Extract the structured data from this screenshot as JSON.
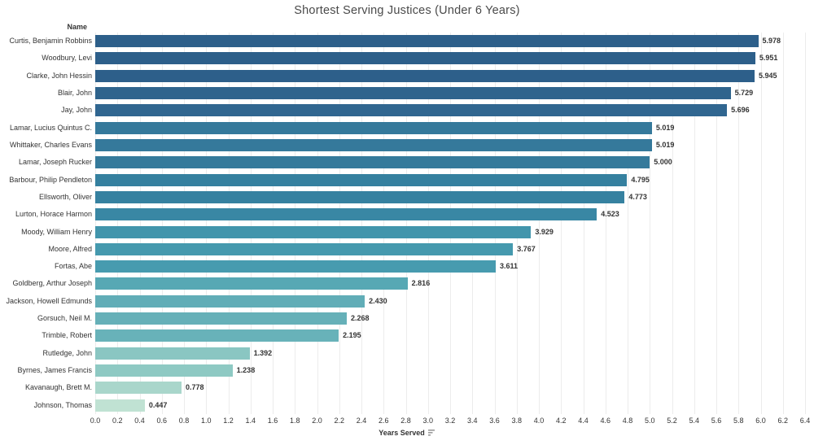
{
  "title": "Shortest Serving Justices (Under 6 Years)",
  "row_header_label": "Name",
  "x_axis": {
    "title": "Years Served",
    "sort_icon": "sort-descending-icon",
    "tick_labels": [
      "0.0",
      "0.2",
      "0.4",
      "0.6",
      "0.8",
      "1.0",
      "1.2",
      "1.4",
      "1.6",
      "1.8",
      "2.0",
      "2.2",
      "2.4",
      "2.6",
      "2.8",
      "3.0",
      "3.2",
      "3.4",
      "3.6",
      "3.8",
      "4.0",
      "4.2",
      "4.4",
      "4.6",
      "4.8",
      "5.0",
      "5.2",
      "5.4",
      "5.6",
      "5.8",
      "6.0",
      "6.2",
      "6.4"
    ]
  },
  "colors": {
    "title_text": "#4a4a4a",
    "label_text": "#333333",
    "gridline": "#ececec"
  },
  "chart_data": {
    "type": "bar",
    "orientation": "horizontal",
    "title": "Shortest Serving Justices (Under 6 Years)",
    "xlabel": "Years Served",
    "ylabel": "Name",
    "xlim": [
      0,
      6.4
    ],
    "x_tick_step": 0.2,
    "grid": true,
    "legend": "none",
    "categories": [
      "Curtis, Benjamin Robbins",
      "Woodbury, Levi",
      "Clarke, John Hessin",
      "Blair, John",
      "Jay, John",
      "Lamar, Lucius Quintus C.",
      "Whittaker, Charles Evans",
      "Lamar, Joseph Rucker",
      "Barbour, Philip Pendleton",
      "Ellsworth, Oliver",
      "Lurton, Horace Harmon",
      "Moody, William Henry",
      "Moore, Alfred",
      "Fortas, Abe",
      "Goldberg, Arthur Joseph",
      "Jackson, Howell Edmunds",
      "Gorsuch, Neil M.",
      "Trimble, Robert",
      "Rutledge, John",
      "Byrnes, James Francis",
      "Kavanaugh, Brett M.",
      "Johnson, Thomas"
    ],
    "values": [
      5.978,
      5.951,
      5.945,
      5.729,
      5.696,
      5.019,
      5.019,
      5.0,
      4.795,
      4.773,
      4.523,
      3.929,
      3.767,
      3.611,
      2.816,
      2.43,
      2.268,
      2.195,
      1.392,
      1.238,
      0.778,
      0.447
    ],
    "value_labels": [
      "5.978",
      "5.951",
      "5.945",
      "5.729",
      "5.696",
      "5.019",
      "5.019",
      "5.000",
      "4.795",
      "4.773",
      "4.523",
      "3.929",
      "3.767",
      "3.611",
      "2.816",
      "2.430",
      "2.268",
      "2.195",
      "1.392",
      "1.238",
      "0.778",
      "0.447"
    ],
    "bar_colors": [
      "#2d5f8a",
      "#2d5f8a",
      "#2d5f8a",
      "#2f648d",
      "#306690",
      "#35799b",
      "#35799b",
      "#357a9b",
      "#35809f",
      "#3681a0",
      "#3987a4",
      "#4295ac",
      "#4599ae",
      "#479baf",
      "#57a8b4",
      "#61adb7",
      "#66b0b8",
      "#68b2b9",
      "#8ac6c2",
      "#8ec9c3",
      "#a9d6cb",
      "#c0e2d3"
    ]
  }
}
